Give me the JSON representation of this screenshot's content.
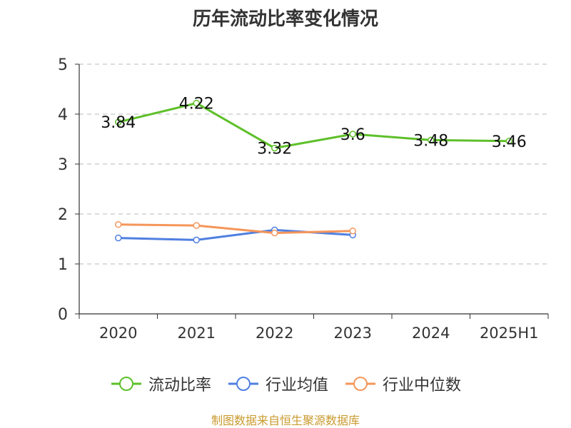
{
  "source_note": "制图数据来自恒生聚源数据库",
  "chart_data": {
    "type": "line",
    "title": "历年流动比率变化情况",
    "categories": [
      "2020",
      "2021",
      "2022",
      "2023",
      "2024",
      "2025H1"
    ],
    "ylim": [
      0,
      5
    ],
    "yticks": [
      0,
      1,
      2,
      3,
      4,
      5
    ],
    "grid": true,
    "legend_position": "bottom",
    "series": [
      {
        "name": "流动比率",
        "color": "#5ec02a",
        "values": [
          3.84,
          4.22,
          3.32,
          3.6,
          3.48,
          3.46
        ],
        "data_labels": [
          "3.84",
          "4.22",
          "3.32",
          "3.6",
          "3.48",
          "3.46"
        ]
      },
      {
        "name": "行业均值",
        "color": "#4f7fe0",
        "values": [
          1.52,
          1.48,
          1.68,
          1.58,
          null,
          null
        ]
      },
      {
        "name": "行业中位数",
        "color": "#f5965a",
        "values": [
          1.79,
          1.77,
          1.62,
          1.66,
          null,
          null
        ]
      }
    ]
  }
}
